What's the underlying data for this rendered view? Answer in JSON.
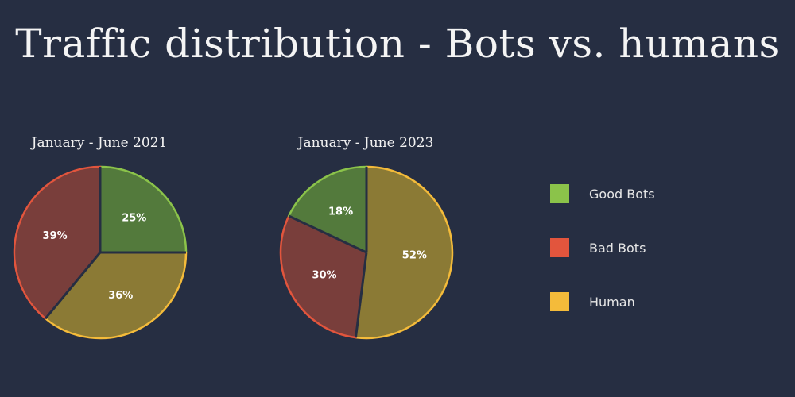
{
  "chart_data": {
    "type": "pie",
    "title": "Traffic distribution - Bots vs. humans",
    "legend_position": "right",
    "categories": [
      "Good Bots",
      "Bad Bots",
      "Human"
    ],
    "colors": {
      "Good Bots": "#8bc34a",
      "Bad Bots": "#e2553d",
      "Human": "#f4bb3a"
    },
    "slice_fills": {
      "Good Bots": "#537a3c",
      "Bad Bots": "#793e3b",
      "Human": "#8b7a35"
    },
    "slice_strokes": {
      "Good Bots": "#8bc34a",
      "Bad Bots": "#e2553d",
      "Human": "#f4bb3a"
    },
    "pies": [
      {
        "title": "January - June 2021",
        "slices": [
          {
            "category": "Good Bots",
            "value": 25,
            "label": "25%"
          },
          {
            "category": "Human",
            "value": 36,
            "label": "36%"
          },
          {
            "category": "Bad Bots",
            "value": 39,
            "label": "39%"
          }
        ]
      },
      {
        "title": "January - June 2023",
        "slices": [
          {
            "category": "Human",
            "value": 52,
            "label": "52%"
          },
          {
            "category": "Bad Bots",
            "value": 30,
            "label": "30%"
          },
          {
            "category": "Good Bots",
            "value": 18,
            "label": "18%"
          }
        ]
      }
    ]
  }
}
